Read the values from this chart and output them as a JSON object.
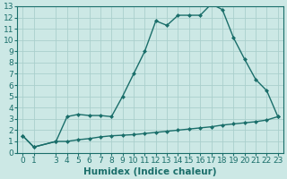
{
  "xlabel": "Humidex (Indice chaleur)",
  "background_color": "#cce8e5",
  "grid_color": "#aacfcc",
  "line_color": "#1a6e6a",
  "xlim": [
    -0.5,
    23.5
  ],
  "ylim": [
    0,
    13
  ],
  "xticks": [
    0,
    1,
    3,
    4,
    5,
    6,
    7,
    8,
    9,
    10,
    11,
    12,
    13,
    14,
    15,
    16,
    17,
    18,
    19,
    20,
    21,
    22,
    23
  ],
  "yticks": [
    0,
    1,
    2,
    3,
    4,
    5,
    6,
    7,
    8,
    9,
    10,
    11,
    12,
    13
  ],
  "upper_x": [
    0,
    1,
    3,
    4,
    5,
    6,
    7,
    8,
    9,
    10,
    11,
    12,
    13,
    14,
    15,
    16,
    17,
    18,
    19,
    20,
    21,
    22,
    23
  ],
  "upper_y": [
    1.5,
    0.5,
    1.0,
    3.2,
    3.4,
    3.3,
    3.3,
    3.2,
    5.0,
    7.0,
    9.0,
    11.7,
    11.3,
    12.2,
    12.2,
    12.2,
    13.2,
    12.7,
    10.2,
    8.3,
    6.5,
    5.5,
    3.2
  ],
  "lower_x": [
    0,
    1,
    3,
    4,
    5,
    6,
    7,
    8,
    9,
    10,
    11,
    12,
    13,
    14,
    15,
    16,
    17,
    18,
    19,
    20,
    21,
    22,
    23
  ],
  "lower_y": [
    1.5,
    0.5,
    1.0,
    1.0,
    1.15,
    1.25,
    1.4,
    1.5,
    1.55,
    1.6,
    1.7,
    1.8,
    1.9,
    2.0,
    2.1,
    2.2,
    2.3,
    2.45,
    2.55,
    2.65,
    2.75,
    2.9,
    3.2
  ],
  "marker_size": 2.5,
  "font_size": 6.5,
  "xlabel_fontsize": 7.5,
  "linewidth": 1.0
}
